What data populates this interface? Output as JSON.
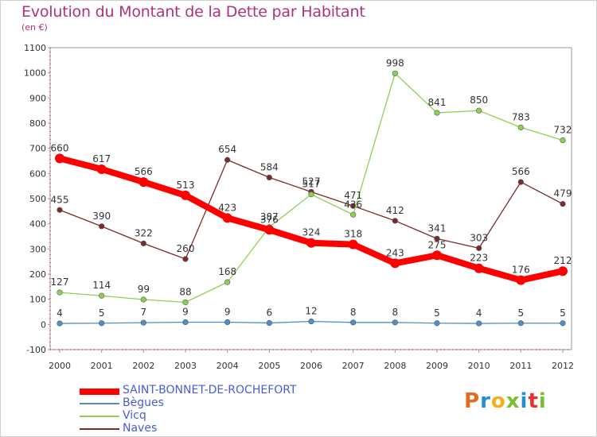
{
  "header": {
    "title": "Evolution du Montant de la Dette par Habitant",
    "subtitle": "(en €)"
  },
  "logo": {
    "text": "Proxiti",
    "colors": [
      "#e46b22",
      "#1f8fd6",
      "#f2b01e",
      "#7bbf2a",
      "#1f8fd6",
      "#e4332f",
      "#7bbf2a"
    ]
  },
  "chart_data": {
    "type": "line",
    "title": "Evolution du Montant de la Dette par Habitant",
    "subtitle": "(en €)",
    "x": [
      "2000",
      "2001",
      "2002",
      "2003",
      "2004",
      "2005",
      "2006",
      "2007",
      "2008",
      "2009",
      "2010",
      "2011",
      "2012"
    ],
    "yticks": [
      "-100",
      "0",
      "100",
      "200",
      "300",
      "400",
      "500",
      "600",
      "700",
      "800",
      "900",
      "1000",
      "1100"
    ],
    "ylim": [
      -100,
      1100
    ],
    "grid": false,
    "legend_position": "bottom-left",
    "series": [
      {
        "name": "SAINT-BONNET-DE-ROCHEFORT",
        "color": "#ff0000",
        "values": [
          660,
          617,
          566,
          513,
          423,
          376,
          324,
          318,
          243,
          275,
          223,
          176,
          212
        ]
      },
      {
        "name": "Bègues",
        "color": "#4f8fc5",
        "values": [
          4,
          5,
          7,
          9,
          9,
          6,
          12,
          8,
          8,
          5,
          4,
          5,
          5
        ]
      },
      {
        "name": "Vicq",
        "color": "#8fd14f",
        "values": [
          127,
          114,
          99,
          88,
          168,
          387,
          517,
          436,
          998,
          841,
          850,
          783,
          732
        ]
      },
      {
        "name": "Naves",
        "color": "#7a2a2a",
        "values": [
          455,
          390,
          322,
          260,
          654,
          584,
          527,
          471,
          412,
          341,
          303,
          566,
          479
        ]
      }
    ]
  }
}
